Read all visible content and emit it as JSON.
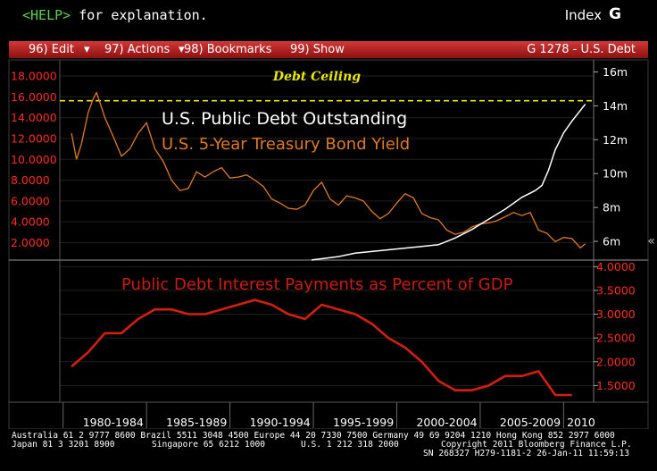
{
  "header": {
    "help_key": "<HELP>",
    "help_text": "for explanation.",
    "index_label": "Index",
    "index_icon": "G"
  },
  "menu": {
    "edit": "96) Edit",
    "actions": "97) Actions",
    "bookmarks": "98) Bookmarks",
    "show": "99) Show",
    "screen_id": "G 1278 - U.S. Debt"
  },
  "colors": {
    "debt_line": "#ffffff",
    "yield_line": "#e07a1a",
    "interest_line": "#d61e0c",
    "ceiling_line": "#e8e800",
    "menu_bg": "#b52020"
  },
  "chart_data": [
    {
      "type": "line",
      "title": "U.S. Public Debt Outstanding",
      "axis": "right",
      "ylim": [
        5,
        16.5
      ],
      "yticks": [
        "6m",
        "8m",
        "10m",
        "12m",
        "14m",
        "16m"
      ],
      "x": [
        1994.4,
        1996,
        1997,
        1998,
        1999,
        2000,
        2001,
        2002,
        2003,
        2004,
        2005,
        2006,
        2007,
        2007.8,
        2008.2,
        2008.6,
        2009,
        2009.5,
        2010,
        2010.8
      ],
      "values": [
        4.9,
        5.1,
        5.3,
        5.4,
        5.5,
        5.6,
        5.7,
        5.8,
        6.2,
        6.7,
        7.3,
        7.9,
        8.6,
        9.0,
        9.3,
        10.2,
        11.4,
        12.4,
        13.1,
        14.1
      ]
    },
    {
      "type": "line",
      "title": "U.S. 5-Year Treasury Bond Yield",
      "axis": "left",
      "ylim": [
        0.5,
        19.2
      ],
      "yticks": [
        "2.0000",
        "4.0000",
        "6.0000",
        "8.0000",
        "10.0000",
        "12.0000",
        "14.0000",
        "16.0000",
        "18.0000"
      ],
      "x": [
        1980,
        1980.3,
        1980.6,
        1981,
        1981.3,
        1981.5,
        1981.8,
        1982,
        1982.5,
        1983,
        1983.5,
        1984,
        1984.5,
        1985,
        1985.5,
        1986,
        1986.5,
        1987,
        1987.5,
        1988,
        1988.5,
        1989,
        1989.5,
        1990,
        1990.5,
        1991,
        1991.5,
        1992,
        1992.5,
        1993,
        1993.5,
        1994,
        1994.5,
        1995,
        1995.5,
        1996,
        1996.5,
        1997,
        1997.5,
        1998,
        1998.5,
        1999,
        1999.5,
        2000,
        2000.5,
        2001,
        2001.5,
        2002,
        2002.5,
        2003,
        2003.5,
        2004,
        2004.5,
        2005,
        2005.5,
        2006,
        2006.5,
        2007,
        2007.5,
        2008,
        2008.5,
        2009,
        2009.5,
        2010,
        2010.5,
        2010.8
      ],
      "values": [
        12.5,
        10.0,
        11.5,
        14.5,
        15.8,
        16.4,
        15.0,
        14.0,
        12.2,
        10.3,
        11.0,
        12.5,
        13.5,
        11.0,
        9.8,
        8.0,
        7.0,
        7.2,
        8.8,
        8.3,
        8.8,
        9.2,
        8.2,
        8.3,
        8.5,
        8.0,
        7.4,
        6.2,
        5.8,
        5.3,
        5.2,
        5.6,
        7.0,
        7.8,
        6.2,
        5.6,
        6.5,
        6.3,
        6.0,
        5.0,
        4.3,
        4.8,
        5.8,
        6.7,
        6.3,
        4.8,
        4.4,
        4.2,
        3.2,
        2.8,
        3.0,
        3.5,
        3.8,
        3.9,
        4.1,
        4.5,
        4.9,
        4.6,
        4.9,
        3.2,
        2.9,
        2.1,
        2.5,
        2.4,
        1.5,
        1.9
      ]
    },
    {
      "type": "line",
      "title": "Public Debt Interest Payments as Percent of GDP",
      "axis": "right-lower",
      "ylim": [
        1.15,
        4.1
      ],
      "yticks": [
        "1.5000",
        "2.0000",
        "2.5000",
        "3.0000",
        "3.5000",
        "4.0000"
      ],
      "x": [
        1980,
        1981,
        1982,
        1983,
        1984,
        1985,
        1986,
        1987,
        1988,
        1989,
        1990,
        1991,
        1992,
        1993,
        1994,
        1995,
        1996,
        1997,
        1998,
        1999,
        2000,
        2001,
        2002,
        2003,
        2004,
        2005,
        2006,
        2007,
        2008,
        2009,
        2010
      ],
      "values": [
        1.9,
        2.2,
        2.6,
        2.6,
        2.9,
        3.1,
        3.1,
        3.0,
        3.0,
        3.1,
        3.2,
        3.3,
        3.2,
        3.0,
        2.9,
        3.2,
        3.1,
        3.0,
        2.8,
        2.5,
        2.3,
        2.0,
        1.6,
        1.4,
        1.4,
        1.5,
        1.7,
        1.7,
        1.8,
        1.3,
        1.3
      ]
    }
  ],
  "labels": {
    "debt_ceiling": "Debt Ceiling",
    "debt_ceiling_value": 14.3,
    "title_debt": "U.S. Public Debt Outstanding",
    "title_yield": "U.S. 5-Year Treasury Bond Yield",
    "title_interest": "Public Debt Interest Payments as Percent of GDP"
  },
  "x_axis": {
    "ticks": [
      "1980-1984",
      "1985-1989",
      "1990-1994",
      "1995-1999",
      "2000-2004",
      "2005-2009",
      "2010"
    ],
    "xlim": [
      1979.3,
      2011.3
    ]
  },
  "footer": {
    "line1": "Australia 61 2 9777 8600 Brazil 5511 3048 4500 Europe 44 20 7330 7500 Germany 49 69 9204 1210 Hong Kong 852 2977 6000",
    "line2_left": "Japan 81 3 3201 8900",
    "line2_mid": "Singapore 65 6212 1000",
    "line2_us": "U.S. 1 212 318 2000",
    "line2_right": "Copyright 2011 Bloomberg Finance L.P.",
    "line3": "SN 268327 H279-1181-2 26-Jan-11 11:59:13"
  }
}
